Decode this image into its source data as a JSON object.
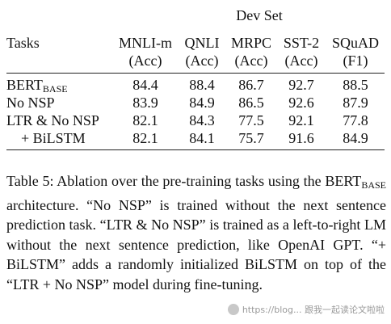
{
  "table": {
    "group_header": "Dev Set",
    "tasks_label": "Tasks",
    "columns": [
      {
        "name": "MNLI-m",
        "metric": "(Acc)"
      },
      {
        "name": "QNLI",
        "metric": "(Acc)"
      },
      {
        "name": "MRPC",
        "metric": "(Acc)"
      },
      {
        "name": "SST-2",
        "metric": "(Acc)"
      },
      {
        "name": "SQuAD",
        "metric": "(F1)"
      }
    ],
    "rows": [
      {
        "task": "BERT",
        "task_sub": "BASE",
        "values": [
          "84.4",
          "88.4",
          "86.7",
          "92.7",
          "88.5"
        ]
      },
      {
        "task": "No NSP",
        "task_sub": "",
        "values": [
          "83.9",
          "84.9",
          "86.5",
          "92.6",
          "87.9"
        ]
      },
      {
        "task": "LTR & No NSP",
        "task_sub": "",
        "values": [
          "82.1",
          "84.3",
          "77.5",
          "92.1",
          "77.8"
        ]
      },
      {
        "task": "+ BiLSTM",
        "task_sub": "",
        "values": [
          "82.1",
          "84.1",
          "75.7",
          "91.6",
          "84.9"
        ]
      }
    ]
  },
  "caption": {
    "part1": "Table 5: Ablation over the pre-training tasks using the BERT",
    "sub": "BASE",
    "part2": " architecture. “No NSP” is trained without the next sentence prediction task. “LTR & No NSP” is trained as a left-to-right LM without the next sentence prediction, like OpenAI GPT. “+ BiLSTM” adds a randomly initialized BiLSTM on top of the “LTR + No NSP” model during fine-tuning."
  },
  "watermark": {
    "text": "https://blog... 跟我一起读论文啦啦"
  }
}
